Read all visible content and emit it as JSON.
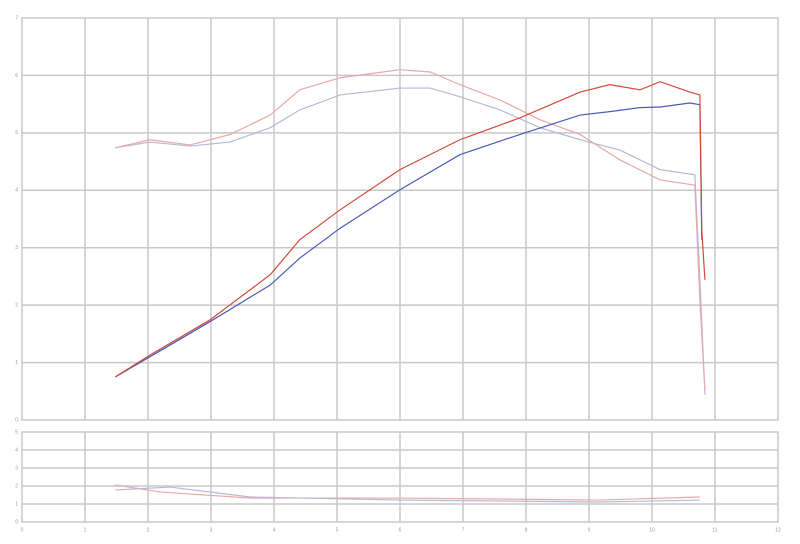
{
  "chart_data": [
    {
      "type": "line",
      "xlim": [
        0,
        12
      ],
      "xticks": [
        0,
        1,
        2,
        3,
        4,
        5,
        6,
        7,
        8,
        9,
        10,
        11,
        12
      ],
      "ylim": [
        0,
        7
      ],
      "yticks": [
        0,
        1,
        2,
        3,
        4,
        5,
        6,
        7
      ],
      "grid": true,
      "series": [
        {
          "color": "#b8b8d8",
          "x": [
            1.48,
            2.03,
            2.67,
            3.3,
            3.94,
            4.41,
            5.05,
            6.0,
            6.48,
            6.95,
            7.59,
            8.22,
            8.86,
            9.49,
            10.13,
            10.68,
            10.76,
            10.84
          ],
          "values": [
            4.74,
            4.84,
            4.77,
            4.84,
            5.09,
            5.4,
            5.66,
            5.78,
            5.78,
            5.63,
            5.4,
            5.09,
            4.88,
            4.7,
            4.36,
            4.27,
            2.44,
            0.44
          ]
        },
        {
          "color": "#e8a8a8",
          "x": [
            1.48,
            2.03,
            2.67,
            3.3,
            3.94,
            4.41,
            5.05,
            6.0,
            6.48,
            6.95,
            7.59,
            8.22,
            8.86,
            9.49,
            10.13,
            10.68,
            10.76,
            10.84
          ],
          "values": [
            4.74,
            4.88,
            4.79,
            4.97,
            5.31,
            5.75,
            5.96,
            6.1,
            6.06,
            5.84,
            5.57,
            5.23,
            4.97,
            4.53,
            4.18,
            4.09,
            2.09,
            0.52
          ]
        },
        {
          "color": "#4a5ab8",
          "x": [
            1.48,
            2.03,
            2.98,
            3.94,
            4.41,
            5.05,
            6.0,
            6.95,
            7.9,
            8.86,
            9.33,
            9.81,
            10.13,
            10.6,
            10.76,
            10.79
          ],
          "values": [
            0.75,
            1.1,
            1.71,
            2.35,
            2.82,
            3.34,
            4.01,
            4.62,
            4.97,
            5.31,
            5.37,
            5.44,
            5.45,
            5.52,
            5.49,
            3.14
          ]
        },
        {
          "color": "#d04a3a",
          "x": [
            1.48,
            2.03,
            2.98,
            3.94,
            4.41,
            5.05,
            6.0,
            6.95,
            7.9,
            8.86,
            9.33,
            9.81,
            10.13,
            10.6,
            10.76,
            10.79,
            10.84
          ],
          "values": [
            0.75,
            1.13,
            1.74,
            2.53,
            3.14,
            3.66,
            4.36,
            4.88,
            5.26,
            5.71,
            5.84,
            5.75,
            5.89,
            5.71,
            5.66,
            3.31,
            2.44
          ]
        }
      ]
    },
    {
      "type": "line",
      "xlim": [
        0,
        12
      ],
      "xticks": [
        0,
        1,
        2,
        3,
        4,
        5,
        6,
        7,
        8,
        9,
        10,
        11,
        12
      ],
      "ylim": [
        0,
        5
      ],
      "yticks": [
        0,
        1,
        2,
        3,
        4,
        5
      ],
      "grid": true,
      "series": [
        {
          "color": "#e8a8a8",
          "x": [
            1.48,
            2.19,
            3.62,
            6.0,
            9.17,
            10.76
          ],
          "values": [
            2.06,
            1.67,
            1.33,
            1.33,
            1.22,
            1.39
          ]
        },
        {
          "color": "#b8b8d8",
          "x": [
            1.48,
            2.35,
            3.62,
            6.0,
            9.17,
            10.76
          ],
          "values": [
            1.78,
            1.94,
            1.39,
            1.22,
            1.11,
            1.22
          ]
        }
      ]
    }
  ]
}
